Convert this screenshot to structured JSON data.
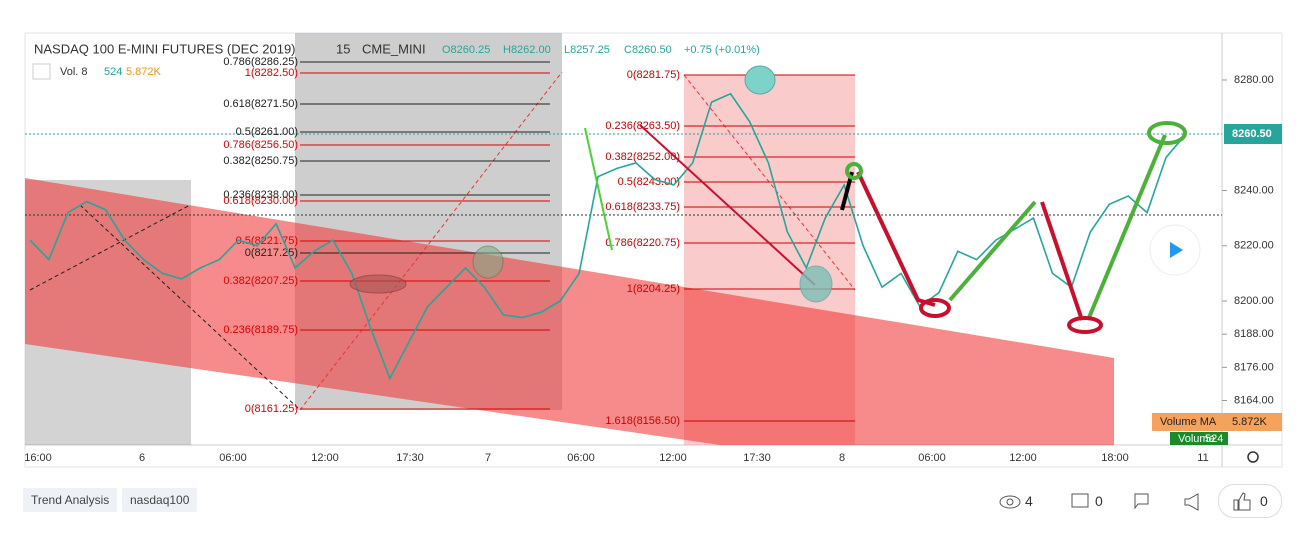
{
  "header": {
    "symbol": "NASDAQ 100 E-MINI FUTURES (DEC 2019)",
    "interval": "15",
    "exchange": "CME_MINI",
    "open": "O8260.25",
    "high": "H8262.00",
    "low": "L8257.25",
    "close": "C8260.50",
    "change": "+0.75 (+0.01%)",
    "volume_label": "Vol. 8",
    "volume": "524",
    "volume_ma": "5.872K"
  },
  "chart_data": {
    "type": "line",
    "color": "#26a69a",
    "values": [
      8222,
      8215,
      8232,
      8236,
      8233,
      8222,
      8215,
      8210,
      8208,
      8212,
      8215,
      8222,
      8220,
      8228,
      8212,
      8218,
      8222,
      8210,
      8190,
      8172,
      8185,
      8198,
      8205,
      8212,
      8205,
      8195,
      8194,
      8196,
      8200,
      8210,
      8245,
      8248,
      8250,
      8244,
      8242,
      8250,
      8272,
      8275,
      8265,
      8250,
      8225,
      8212,
      8230,
      8242,
      8220,
      8205,
      8210,
      8198,
      8203,
      8218,
      8215,
      8222,
      8226,
      8230,
      8210,
      8205,
      8225,
      8235,
      8238,
      8232,
      8252,
      8260
    ],
    "ylim": [
      8147.9,
      8297.0
    ],
    "yticks": [
      {
        "value": 8280,
        "label": "8280.00"
      },
      {
        "value": 8240,
        "label": "8240.00"
      },
      {
        "value": 8220,
        "label": "8220.00"
      },
      {
        "value": 8200,
        "label": "8200.00"
      },
      {
        "value": 8188,
        "label": "8188.00"
      },
      {
        "value": 8176,
        "label": "8176.00"
      },
      {
        "value": 8164,
        "label": "8164.00"
      }
    ],
    "x_labels": [
      "16:00",
      "6",
      "06:00",
      "12:00",
      "17:30",
      "7",
      "06:00",
      "12:00",
      "17:30",
      "8",
      "06:00",
      "12:00",
      "18:00",
      "11"
    ]
  },
  "fib_a": [
    "0.786(8286.25)",
    "1(8282.50)",
    "0.618(8271.50)",
    "0.5(8261.00)",
    "0.786(8256.50)",
    "0.382(8250.75)",
    "0.236(8238.00)",
    "0.618(8230.00)",
    "0.5(8221.75)",
    "0(8217.25)",
    "0.382(8207.25)",
    "0.236(8189.75)",
    "0(8161.25)"
  ],
  "fib_b": [
    "0(8281.75)",
    "0.236(8263.50)",
    "0.382(8252.00)",
    "0.5(8243.00)",
    "0.618(8233.75)",
    "0.786(8220.75)",
    "1(8204.25)",
    "1.618(8156.50)"
  ],
  "price_badge": "8260.50",
  "volume_ma_badge": {
    "name": "Volume MA",
    "value": "5.872K"
  },
  "volume_badge": {
    "name": "Volume",
    "value": "524"
  },
  "tags": [
    "Trend Analysis",
    "nasdaq100"
  ],
  "stats": {
    "views": "4",
    "comments": "0",
    "boosts": "0"
  }
}
